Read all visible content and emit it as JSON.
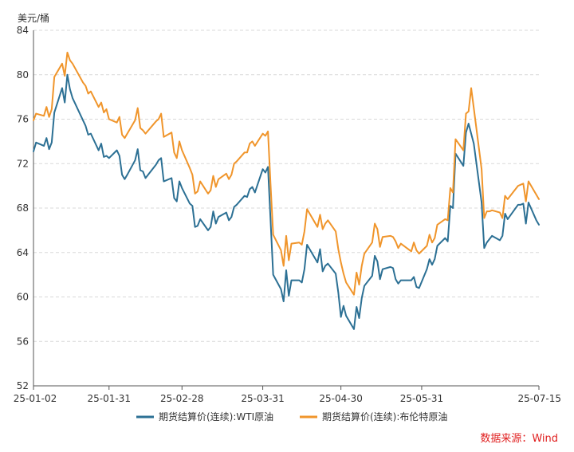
{
  "chart_data": {
    "type": "line",
    "unit_label": "美元/桶",
    "ylim": [
      52,
      84
    ],
    "y_ticks": [
      52,
      56,
      60,
      64,
      68,
      72,
      76,
      80,
      84
    ],
    "x_range": [
      "2025-01-02",
      "2025-07-15"
    ],
    "x_ticks": [
      {
        "date": "2025-01-02",
        "label": "25-01-02"
      },
      {
        "date": "2025-01-31",
        "label": "25-01-31"
      },
      {
        "date": "2025-02-28",
        "label": "25-02-28"
      },
      {
        "date": "2025-03-31",
        "label": "25-03-31"
      },
      {
        "date": "2025-04-30",
        "label": "25-04-30"
      },
      {
        "date": "2025-05-31",
        "label": "25-05-31"
      },
      {
        "date": "2025-07-15",
        "label": "25-07-15"
      }
    ],
    "grid": "horizontal-dashed",
    "legend_position": "bottom",
    "series": [
      {
        "name": "期货结算价(连续):WTI原油",
        "color": "#2c7094",
        "points": [
          [
            "2025-01-02",
            73.1
          ],
          [
            "2025-01-03",
            73.9
          ],
          [
            "2025-01-06",
            73.6
          ],
          [
            "2025-01-07",
            74.3
          ],
          [
            "2025-01-08",
            73.3
          ],
          [
            "2025-01-09",
            73.9
          ],
          [
            "2025-01-10",
            76.6
          ],
          [
            "2025-01-13",
            78.8
          ],
          [
            "2025-01-14",
            77.5
          ],
          [
            "2025-01-15",
            80.0
          ],
          [
            "2025-01-16",
            78.7
          ],
          [
            "2025-01-17",
            77.9
          ],
          [
            "2025-01-21",
            75.9
          ],
          [
            "2025-01-22",
            75.4
          ],
          [
            "2025-01-23",
            74.6
          ],
          [
            "2025-01-24",
            74.7
          ],
          [
            "2025-01-27",
            73.2
          ],
          [
            "2025-01-28",
            73.8
          ],
          [
            "2025-01-29",
            72.6
          ],
          [
            "2025-01-30",
            72.7
          ],
          [
            "2025-01-31",
            72.5
          ],
          [
            "2025-02-03",
            73.2
          ],
          [
            "2025-02-04",
            72.7
          ],
          [
            "2025-02-05",
            71.0
          ],
          [
            "2025-02-06",
            70.6
          ],
          [
            "2025-02-07",
            71.0
          ],
          [
            "2025-02-10",
            72.3
          ],
          [
            "2025-02-11",
            73.3
          ],
          [
            "2025-02-12",
            71.4
          ],
          [
            "2025-02-13",
            71.3
          ],
          [
            "2025-02-14",
            70.7
          ],
          [
            "2025-02-18",
            71.9
          ],
          [
            "2025-02-19",
            72.3
          ],
          [
            "2025-02-20",
            72.5
          ],
          [
            "2025-02-21",
            70.4
          ],
          [
            "2025-02-24",
            70.7
          ],
          [
            "2025-02-25",
            68.9
          ],
          [
            "2025-02-26",
            68.6
          ],
          [
            "2025-02-27",
            70.4
          ],
          [
            "2025-02-28",
            69.8
          ],
          [
            "2025-03-03",
            68.4
          ],
          [
            "2025-03-04",
            68.2
          ],
          [
            "2025-03-05",
            66.3
          ],
          [
            "2025-03-06",
            66.4
          ],
          [
            "2025-03-07",
            67.0
          ],
          [
            "2025-03-10",
            66.0
          ],
          [
            "2025-03-11",
            66.3
          ],
          [
            "2025-03-12",
            67.7
          ],
          [
            "2025-03-13",
            66.6
          ],
          [
            "2025-03-14",
            67.2
          ],
          [
            "2025-03-17",
            67.6
          ],
          [
            "2025-03-18",
            66.9
          ],
          [
            "2025-03-19",
            67.2
          ],
          [
            "2025-03-20",
            68.1
          ],
          [
            "2025-03-21",
            68.3
          ],
          [
            "2025-03-24",
            69.1
          ],
          [
            "2025-03-25",
            69.0
          ],
          [
            "2025-03-26",
            69.7
          ],
          [
            "2025-03-27",
            69.9
          ],
          [
            "2025-03-28",
            69.4
          ],
          [
            "2025-03-31",
            71.5
          ],
          [
            "2025-04-01",
            71.2
          ],
          [
            "2025-04-02",
            71.7
          ],
          [
            "2025-04-03",
            66.9
          ],
          [
            "2025-04-04",
            62.0
          ],
          [
            "2025-04-07",
            60.7
          ],
          [
            "2025-04-08",
            59.6
          ],
          [
            "2025-04-09",
            62.4
          ],
          [
            "2025-04-10",
            60.1
          ],
          [
            "2025-04-11",
            61.5
          ],
          [
            "2025-04-14",
            61.5
          ],
          [
            "2025-04-15",
            61.3
          ],
          [
            "2025-04-16",
            62.5
          ],
          [
            "2025-04-17",
            64.7
          ],
          [
            "2025-04-21",
            63.1
          ],
          [
            "2025-04-22",
            64.3
          ],
          [
            "2025-04-23",
            62.3
          ],
          [
            "2025-04-24",
            62.8
          ],
          [
            "2025-04-25",
            63.0
          ],
          [
            "2025-04-28",
            62.1
          ],
          [
            "2025-04-29",
            60.4
          ],
          [
            "2025-04-30",
            58.2
          ],
          [
            "2025-05-01",
            59.2
          ],
          [
            "2025-05-02",
            58.3
          ],
          [
            "2025-05-05",
            57.1
          ],
          [
            "2025-05-06",
            59.1
          ],
          [
            "2025-05-07",
            58.1
          ],
          [
            "2025-05-08",
            59.9
          ],
          [
            "2025-05-09",
            61.0
          ],
          [
            "2025-05-12",
            61.9
          ],
          [
            "2025-05-13",
            63.7
          ],
          [
            "2025-05-14",
            63.2
          ],
          [
            "2025-05-15",
            61.6
          ],
          [
            "2025-05-16",
            62.5
          ],
          [
            "2025-05-19",
            62.7
          ],
          [
            "2025-05-20",
            62.6
          ],
          [
            "2025-05-21",
            61.6
          ],
          [
            "2025-05-22",
            61.2
          ],
          [
            "2025-05-23",
            61.5
          ],
          [
            "2025-05-27",
            61.5
          ],
          [
            "2025-05-28",
            61.8
          ],
          [
            "2025-05-29",
            60.9
          ],
          [
            "2025-05-30",
            60.8
          ],
          [
            "2025-06-02",
            62.5
          ],
          [
            "2025-06-03",
            63.4
          ],
          [
            "2025-06-04",
            62.9
          ],
          [
            "2025-06-05",
            63.4
          ],
          [
            "2025-06-06",
            64.6
          ],
          [
            "2025-06-09",
            65.3
          ],
          [
            "2025-06-10",
            65.0
          ],
          [
            "2025-06-11",
            68.2
          ],
          [
            "2025-06-12",
            68.0
          ],
          [
            "2025-06-13",
            72.9
          ],
          [
            "2025-06-16",
            71.8
          ],
          [
            "2025-06-17",
            74.8
          ],
          [
            "2025-06-18",
            75.6
          ],
          [
            "2025-06-20",
            73.8
          ],
          [
            "2025-06-23",
            68.5
          ],
          [
            "2025-06-24",
            64.4
          ],
          [
            "2025-06-25",
            64.9
          ],
          [
            "2025-06-26",
            65.2
          ],
          [
            "2025-06-27",
            65.5
          ],
          [
            "2025-06-30",
            65.1
          ],
          [
            "2025-07-01",
            65.5
          ],
          [
            "2025-07-02",
            67.5
          ],
          [
            "2025-07-03",
            67.0
          ],
          [
            "2025-07-07",
            68.3
          ],
          [
            "2025-07-08",
            68.3
          ],
          [
            "2025-07-09",
            68.4
          ],
          [
            "2025-07-10",
            66.6
          ],
          [
            "2025-07-11",
            68.5
          ],
          [
            "2025-07-14",
            66.9
          ],
          [
            "2025-07-15",
            66.5
          ]
        ]
      },
      {
        "name": "期货结算价(连续):布伦特原油",
        "color": "#f0952b",
        "points": [
          [
            "2025-01-02",
            75.9
          ],
          [
            "2025-01-03",
            76.5
          ],
          [
            "2025-01-06",
            76.3
          ],
          [
            "2025-01-07",
            77.1
          ],
          [
            "2025-01-08",
            76.2
          ],
          [
            "2025-01-09",
            76.9
          ],
          [
            "2025-01-10",
            79.8
          ],
          [
            "2025-01-13",
            81.0
          ],
          [
            "2025-01-14",
            79.9
          ],
          [
            "2025-01-15",
            82.0
          ],
          [
            "2025-01-16",
            81.3
          ],
          [
            "2025-01-17",
            81.0
          ],
          [
            "2025-01-21",
            79.3
          ],
          [
            "2025-01-22",
            79.0
          ],
          [
            "2025-01-23",
            78.3
          ],
          [
            "2025-01-24",
            78.5
          ],
          [
            "2025-01-27",
            77.1
          ],
          [
            "2025-01-28",
            77.5
          ],
          [
            "2025-01-29",
            76.6
          ],
          [
            "2025-01-30",
            76.9
          ],
          [
            "2025-01-31",
            76.0
          ],
          [
            "2025-02-03",
            75.7
          ],
          [
            "2025-02-04",
            76.2
          ],
          [
            "2025-02-05",
            74.6
          ],
          [
            "2025-02-06",
            74.3
          ],
          [
            "2025-02-07",
            74.7
          ],
          [
            "2025-02-10",
            75.9
          ],
          [
            "2025-02-11",
            77.0
          ],
          [
            "2025-02-12",
            75.2
          ],
          [
            "2025-02-13",
            75.0
          ],
          [
            "2025-02-14",
            74.7
          ],
          [
            "2025-02-18",
            75.8
          ],
          [
            "2025-02-19",
            76.0
          ],
          [
            "2025-02-20",
            76.5
          ],
          [
            "2025-02-21",
            74.4
          ],
          [
            "2025-02-24",
            74.8
          ],
          [
            "2025-02-25",
            73.0
          ],
          [
            "2025-02-26",
            72.5
          ],
          [
            "2025-02-27",
            74.0
          ],
          [
            "2025-02-28",
            73.2
          ],
          [
            "2025-03-03",
            71.6
          ],
          [
            "2025-03-04",
            71.0
          ],
          [
            "2025-03-05",
            69.3
          ],
          [
            "2025-03-06",
            69.5
          ],
          [
            "2025-03-07",
            70.4
          ],
          [
            "2025-03-10",
            69.3
          ],
          [
            "2025-03-11",
            69.6
          ],
          [
            "2025-03-12",
            70.9
          ],
          [
            "2025-03-13",
            69.9
          ],
          [
            "2025-03-14",
            70.6
          ],
          [
            "2025-03-17",
            71.1
          ],
          [
            "2025-03-18",
            70.6
          ],
          [
            "2025-03-19",
            71.0
          ],
          [
            "2025-03-20",
            72.0
          ],
          [
            "2025-03-21",
            72.2
          ],
          [
            "2025-03-24",
            73.0
          ],
          [
            "2025-03-25",
            73.0
          ],
          [
            "2025-03-26",
            73.8
          ],
          [
            "2025-03-27",
            74.0
          ],
          [
            "2025-03-28",
            73.6
          ],
          [
            "2025-03-31",
            74.7
          ],
          [
            "2025-04-01",
            74.5
          ],
          [
            "2025-04-02",
            74.9
          ],
          [
            "2025-04-03",
            70.1
          ],
          [
            "2025-04-04",
            65.6
          ],
          [
            "2025-04-07",
            64.2
          ],
          [
            "2025-04-08",
            62.8
          ],
          [
            "2025-04-09",
            65.5
          ],
          [
            "2025-04-10",
            63.3
          ],
          [
            "2025-04-11",
            64.8
          ],
          [
            "2025-04-14",
            64.9
          ],
          [
            "2025-04-15",
            64.7
          ],
          [
            "2025-04-16",
            65.9
          ],
          [
            "2025-04-17",
            67.9
          ],
          [
            "2025-04-21",
            66.3
          ],
          [
            "2025-04-22",
            67.4
          ],
          [
            "2025-04-23",
            66.1
          ],
          [
            "2025-04-24",
            66.6
          ],
          [
            "2025-04-25",
            66.9
          ],
          [
            "2025-04-28",
            65.9
          ],
          [
            "2025-04-29",
            64.3
          ],
          [
            "2025-04-30",
            63.1
          ],
          [
            "2025-05-01",
            62.1
          ],
          [
            "2025-05-02",
            61.3
          ],
          [
            "2025-05-05",
            60.2
          ],
          [
            "2025-05-06",
            62.2
          ],
          [
            "2025-05-07",
            61.1
          ],
          [
            "2025-05-08",
            62.8
          ],
          [
            "2025-05-09",
            63.9
          ],
          [
            "2025-05-12",
            64.9
          ],
          [
            "2025-05-13",
            66.6
          ],
          [
            "2025-05-14",
            66.1
          ],
          [
            "2025-05-15",
            64.5
          ],
          [
            "2025-05-16",
            65.4
          ],
          [
            "2025-05-19",
            65.5
          ],
          [
            "2025-05-20",
            65.4
          ],
          [
            "2025-05-21",
            65.0
          ],
          [
            "2025-05-22",
            64.4
          ],
          [
            "2025-05-23",
            64.8
          ],
          [
            "2025-05-27",
            64.1
          ],
          [
            "2025-05-28",
            64.9
          ],
          [
            "2025-05-29",
            64.2
          ],
          [
            "2025-05-30",
            63.9
          ],
          [
            "2025-06-02",
            64.6
          ],
          [
            "2025-06-03",
            65.6
          ],
          [
            "2025-06-04",
            64.9
          ],
          [
            "2025-06-05",
            65.3
          ],
          [
            "2025-06-06",
            66.5
          ],
          [
            "2025-06-09",
            67.0
          ],
          [
            "2025-06-10",
            66.9
          ],
          [
            "2025-06-11",
            69.8
          ],
          [
            "2025-06-12",
            69.4
          ],
          [
            "2025-06-13",
            74.2
          ],
          [
            "2025-06-16",
            73.2
          ],
          [
            "2025-06-17",
            76.5
          ],
          [
            "2025-06-18",
            76.7
          ],
          [
            "2025-06-19",
            78.8
          ],
          [
            "2025-06-20",
            77.0
          ],
          [
            "2025-06-23",
            71.5
          ],
          [
            "2025-06-24",
            67.1
          ],
          [
            "2025-06-25",
            67.7
          ],
          [
            "2025-06-26",
            67.7
          ],
          [
            "2025-06-27",
            67.8
          ],
          [
            "2025-06-30",
            67.6
          ],
          [
            "2025-07-01",
            67.1
          ],
          [
            "2025-07-02",
            69.1
          ],
          [
            "2025-07-03",
            68.8
          ],
          [
            "2025-07-07",
            70.0
          ],
          [
            "2025-07-08",
            70.1
          ],
          [
            "2025-07-09",
            70.2
          ],
          [
            "2025-07-10",
            68.6
          ],
          [
            "2025-07-11",
            70.4
          ],
          [
            "2025-07-14",
            69.2
          ],
          [
            "2025-07-15",
            68.8
          ]
        ]
      }
    ]
  },
  "source_label": "数据来源：Wind"
}
